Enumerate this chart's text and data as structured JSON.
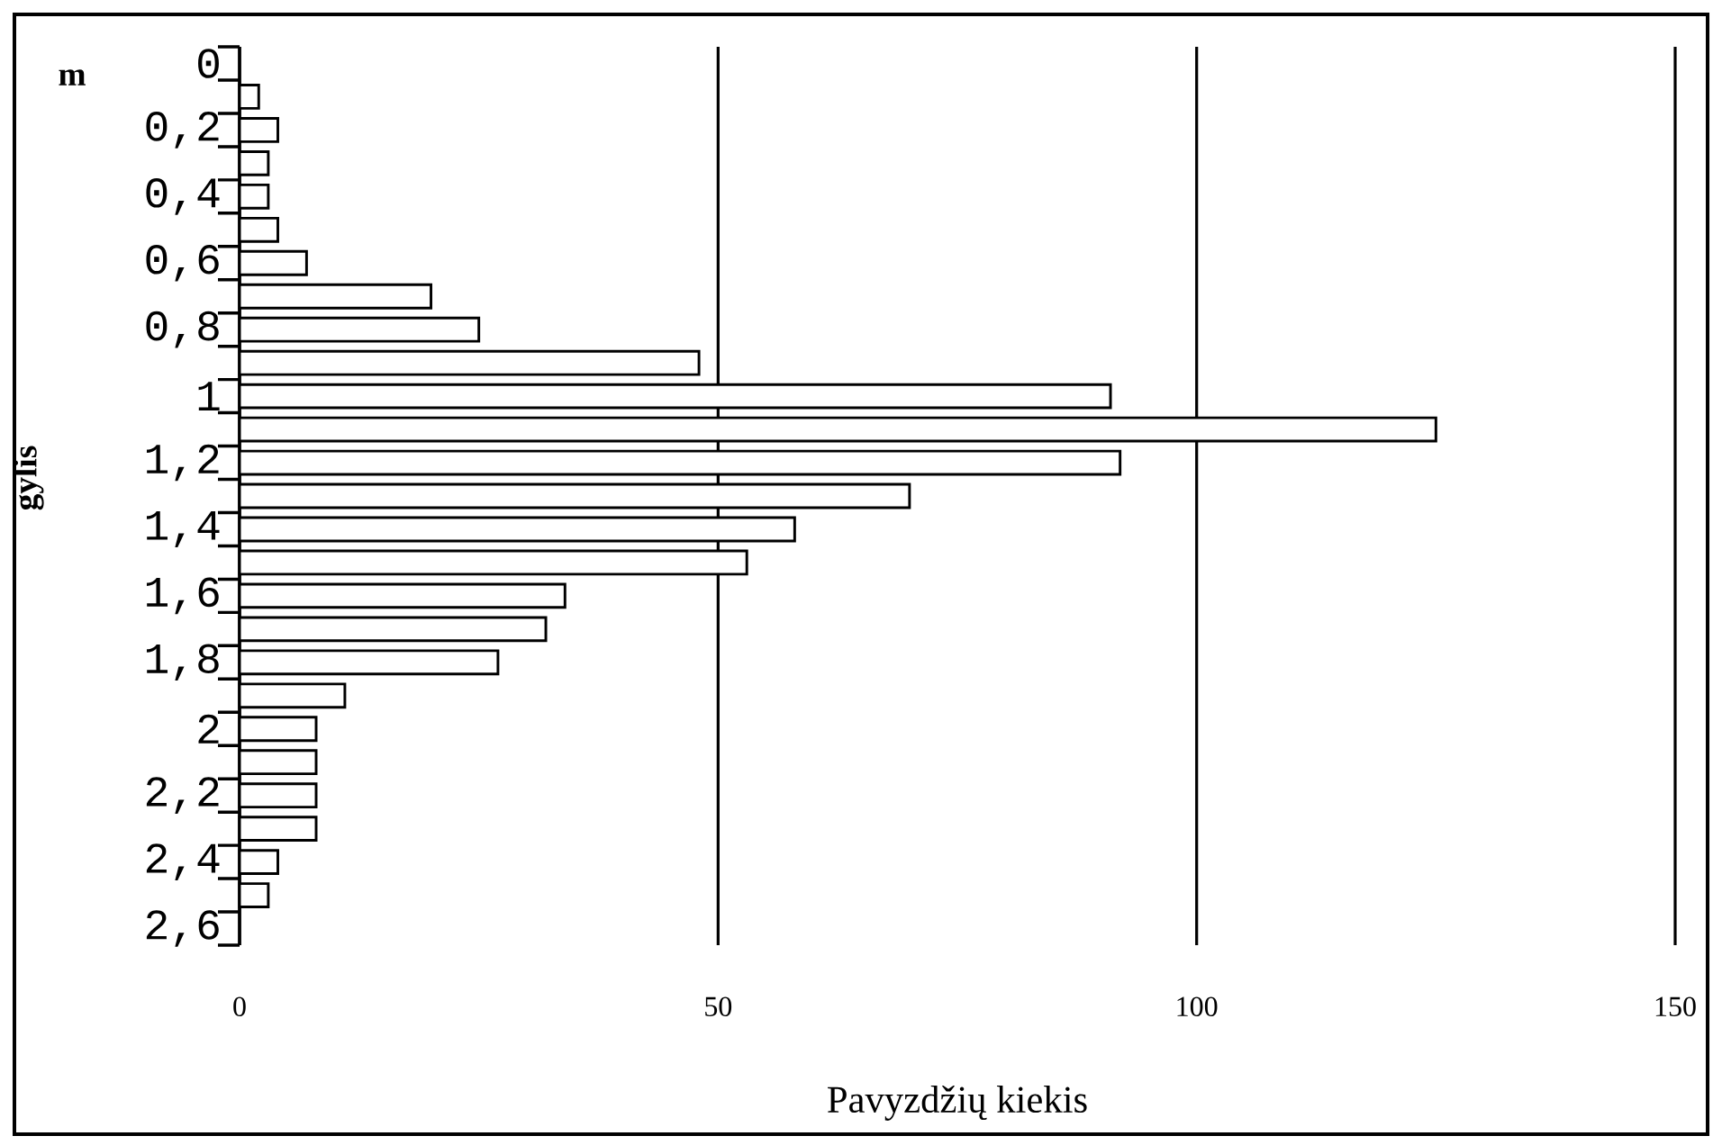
{
  "chart_data": {
    "type": "bar",
    "orientation": "horizontal",
    "categories": [
      "0",
      null,
      "0,2",
      null,
      "0,4",
      null,
      "0,6",
      null,
      "0,8",
      null,
      "1",
      null,
      "1,2",
      null,
      "1,4",
      null,
      "1,6",
      null,
      "1,8",
      null,
      "2",
      null,
      "2,2",
      null,
      "2,4",
      null,
      "2,6"
    ],
    "values": [
      null,
      2,
      4,
      3,
      3,
      4,
      7,
      20,
      25,
      48,
      91,
      125,
      92,
      70,
      58,
      53,
      34,
      32,
      27,
      11,
      8,
      8,
      8,
      8,
      4,
      3,
      null
    ],
    "color": "#ffffff",
    "xlabel": "Pavyzdžių kiekis",
    "ylabel": "gylis",
    "annotations": [
      "m"
    ],
    "xlim": [
      0,
      150
    ],
    "xticks": [
      0,
      50,
      100,
      150
    ],
    "grid": "x"
  }
}
